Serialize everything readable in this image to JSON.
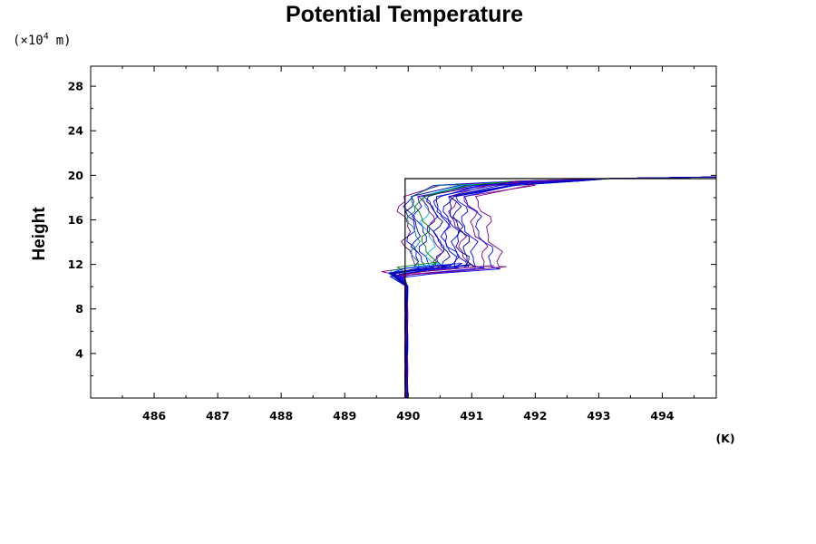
{
  "chart_data": {
    "type": "line",
    "title": "Potential Temperature",
    "xlabel": "(K)",
    "ylabel": "Height",
    "yunit_prefix": "(×10",
    "yunit_exp": "4",
    "yunit_suffix": "m)",
    "xlim": [
      485,
      494.85
    ],
    "ylim": [
      0,
      29.8
    ],
    "xticks": [
      486,
      487,
      488,
      489,
      490,
      491,
      492,
      493,
      494
    ],
    "xtick_labels": [
      "486",
      "487",
      "488",
      "489",
      "490",
      "491",
      "492",
      "493",
      "494"
    ],
    "yticks": [
      4,
      8,
      12,
      16,
      20,
      24,
      28
    ],
    "ytick_labels": [
      "4",
      "8",
      "12",
      "16",
      "20",
      "24",
      "28"
    ],
    "grid": false,
    "colors": [
      "#0000ff",
      "#800080",
      "#0000a0",
      "#008080",
      "#00c0ff",
      "#008000",
      "#000000"
    ],
    "reference_profile": {
      "color": "#000000",
      "x": [
        489.95,
        489.95,
        494.85
      ],
      "y": [
        0,
        19.7,
        19.7
      ]
    },
    "series_params": [
      {
        "c": "#0000ff",
        "a": 489.95,
        "b": 490.1,
        "w": 11.0
      },
      {
        "c": "#800080",
        "a": 489.75,
        "b": 490.05,
        "w": 11.2
      },
      {
        "c": "#0000a0",
        "a": 489.85,
        "b": 490.2,
        "w": 11.0
      },
      {
        "c": "#0000ff",
        "a": 489.95,
        "b": 490.3,
        "w": 11.1
      },
      {
        "c": "#008080",
        "a": 489.9,
        "b": 490.15,
        "w": 11.3
      },
      {
        "c": "#00c0ff",
        "a": 490.05,
        "b": 490.4,
        "w": 11.5
      },
      {
        "c": "#0000ff",
        "a": 490.1,
        "b": 490.55,
        "w": 11.2
      },
      {
        "c": "#800080",
        "a": 490.05,
        "b": 490.5,
        "w": 11.0
      },
      {
        "c": "#0000a0",
        "a": 490.15,
        "b": 490.6,
        "w": 11.4
      },
      {
        "c": "#0000ff",
        "a": 490.25,
        "b": 490.7,
        "w": 11.1
      },
      {
        "c": "#008000",
        "a": 490.0,
        "b": 490.35,
        "w": 11.6
      },
      {
        "c": "#0000ff",
        "a": 490.3,
        "b": 490.85,
        "w": 11.3
      },
      {
        "c": "#800080",
        "a": 490.35,
        "b": 490.95,
        "w": 11.0
      },
      {
        "c": "#0000a0",
        "a": 490.4,
        "b": 491.0,
        "w": 11.2
      },
      {
        "c": "#0000ff",
        "a": 490.5,
        "b": 491.1,
        "w": 11.1
      },
      {
        "c": "#800080",
        "a": 490.6,
        "b": 491.25,
        "w": 11.3
      },
      {
        "c": "#0000ff",
        "a": 490.55,
        "b": 491.35,
        "w": 11.0
      },
      {
        "c": "#800080",
        "a": 490.8,
        "b": 491.45,
        "w": 11.2
      },
      {
        "c": "#0000ff",
        "a": 490.2,
        "b": 490.75,
        "w": 11.5
      },
      {
        "c": "#0000a0",
        "a": 490.45,
        "b": 490.9,
        "w": 11.4
      }
    ]
  }
}
